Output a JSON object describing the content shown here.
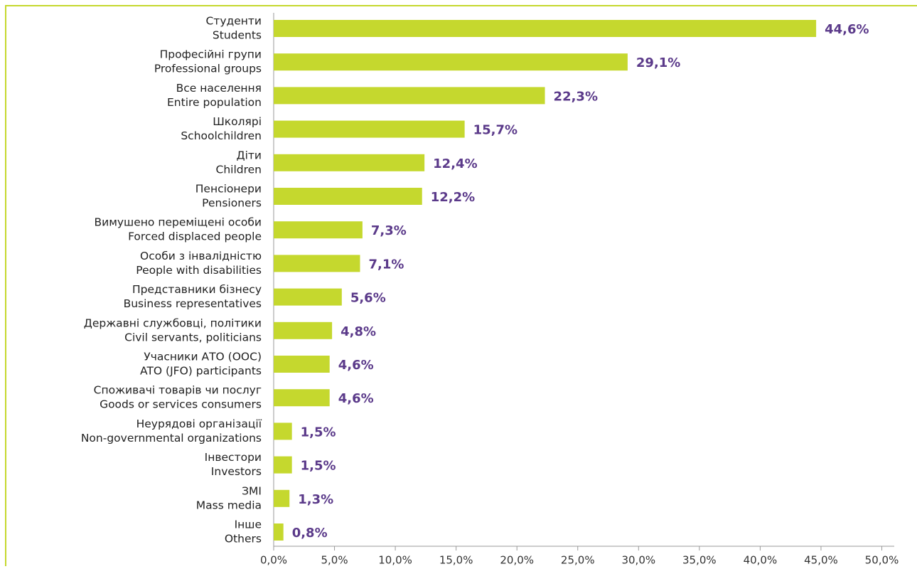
{
  "chart_data": {
    "type": "barh",
    "categories": [
      [
        "Студенти",
        "Students"
      ],
      [
        "Професійні групи",
        "Professional groups"
      ],
      [
        "Все населення",
        "Entire population"
      ],
      [
        "Школярі",
        "Schoolchildren"
      ],
      [
        "Діти",
        "Children"
      ],
      [
        "Пенсіонери",
        "Pensioners"
      ],
      [
        "Вимушено переміщені особи",
        "Forced displaced people"
      ],
      [
        "Особи з інвалідністю",
        "People with disabilities"
      ],
      [
        "Представники бізнесу",
        "Business representatives"
      ],
      [
        "Державні службовці, політики",
        "Civil servants, politicians"
      ],
      [
        "Учасники АТО (ООС)",
        "ATO (JFO) participants"
      ],
      [
        "Споживачі товарів чи послуг",
        "Goods or services consumers"
      ],
      [
        "Неурядові організації",
        "Non-governmental organizations"
      ],
      [
        "Інвестори",
        "Investors"
      ],
      [
        "ЗМІ",
        "Mass media"
      ],
      [
        "Інше",
        "Others"
      ]
    ],
    "values": [
      44.6,
      29.1,
      22.3,
      15.7,
      12.4,
      12.2,
      7.3,
      7.1,
      5.6,
      4.8,
      4.6,
      4.6,
      1.5,
      1.5,
      1.3,
      0.8
    ],
    "value_labels": [
      "44,6%",
      "29,1%",
      "22,3%",
      "15,7%",
      "12,4%",
      "12,2%",
      "7,3%",
      "7,1%",
      "5,6%",
      "4,8%",
      "4,6%",
      "4,6%",
      "1,5%",
      "1,5%",
      "1,3%",
      "0,8%"
    ],
    "color": "#c5d82e",
    "label_color": "#5b3a8a",
    "xlim": [
      0,
      50
    ],
    "xticks": [
      {
        "value": 0,
        "label": "0,0%"
      },
      {
        "value": 5,
        "label": "5,0%"
      },
      {
        "value": 10,
        "label": "10,0%"
      },
      {
        "value": 15,
        "label": "15,0%"
      },
      {
        "value": 20,
        "label": "20,0%"
      },
      {
        "value": 25,
        "label": "25,0%"
      },
      {
        "value": 30,
        "label": "30,0%"
      },
      {
        "value": 35,
        "label": "35,0%"
      },
      {
        "value": 40,
        "label": "40,0%"
      },
      {
        "value": 45,
        "label": "45,0%"
      },
      {
        "value": 50,
        "label": "50,0%"
      }
    ]
  }
}
